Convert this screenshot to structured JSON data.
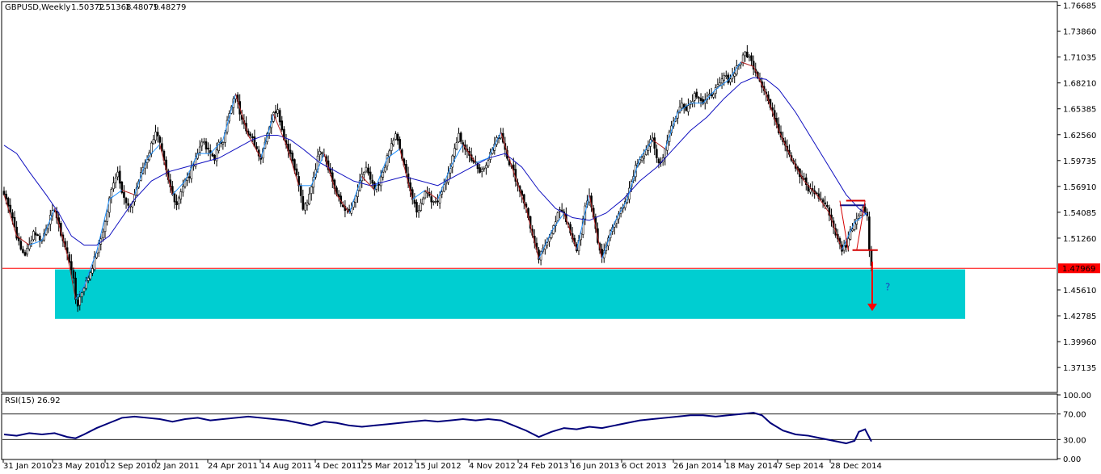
{
  "chart_data": {
    "type": "candlestick",
    "symbol_header": "GBPUSD,Weekly",
    "ohlc_header": {
      "open": "1.50372",
      "high": "1.51368",
      "low": "1.48079",
      "close": "1.48279"
    },
    "price_axis": {
      "ylim": [
        1.345,
        1.77
      ],
      "ticks": [
        "1.76685",
        "1.73860",
        "1.71035",
        "1.68210",
        "1.65385",
        "1.62560",
        "1.59735",
        "1.56910",
        "1.54085",
        "1.51260",
        "1.45610",
        "1.42785",
        "1.39960",
        "1.37135"
      ],
      "current_price": "1.47969"
    },
    "date_labels": [
      "31 Jan 2010",
      "23 May 2010",
      "12 Sep 2010",
      "2 Jan 2011",
      "24 Apr 2011",
      "14 Aug 2011",
      "4 Dec 2011",
      "25 Mar 2012",
      "15 Jul 2012",
      "4 Nov 2012",
      "24 Feb 2013",
      "16 Jun 2013",
      "6 Oct 2013",
      "26 Jan 2014",
      "18 May 2014",
      "7 Sep 2014",
      "28 Dec 2014"
    ],
    "close_path": [
      [
        0,
        1.56
      ],
      [
        2,
        1.55
      ],
      [
        4,
        1.535
      ],
      [
        6,
        1.515
      ],
      [
        8,
        1.5
      ],
      [
        10,
        1.495
      ],
      [
        12,
        1.505
      ],
      [
        14,
        1.52
      ],
      [
        16,
        1.515
      ],
      [
        18,
        1.51
      ],
      [
        20,
        1.525
      ],
      [
        22,
        1.535
      ],
      [
        24,
        1.545
      ],
      [
        26,
        1.525
      ],
      [
        28,
        1.51
      ],
      [
        30,
        1.495
      ],
      [
        32,
        1.48
      ],
      [
        33,
        1.466
      ],
      [
        34,
        1.446
      ],
      [
        35,
        1.44
      ],
      [
        36,
        1.448
      ],
      [
        38,
        1.46
      ],
      [
        40,
        1.47
      ],
      [
        42,
        1.482
      ],
      [
        44,
        1.498
      ],
      [
        46,
        1.512
      ],
      [
        48,
        1.53
      ],
      [
        50,
        1.555
      ],
      [
        52,
        1.575
      ],
      [
        54,
        1.585
      ],
      [
        56,
        1.565
      ],
      [
        58,
        1.55
      ],
      [
        60,
        1.545
      ],
      [
        62,
        1.56
      ],
      [
        64,
        1.575
      ],
      [
        66,
        1.59
      ],
      [
        68,
        1.6
      ],
      [
        70,
        1.615
      ],
      [
        72,
        1.63
      ],
      [
        74,
        1.615
      ],
      [
        76,
        1.595
      ],
      [
        78,
        1.575
      ],
      [
        80,
        1.56
      ],
      [
        82,
        1.55
      ],
      [
        84,
        1.565
      ],
      [
        86,
        1.575
      ],
      [
        88,
        1.58
      ],
      [
        90,
        1.595
      ],
      [
        92,
        1.605
      ],
      [
        94,
        1.62
      ],
      [
        96,
        1.61
      ],
      [
        98,
        1.605
      ],
      [
        100,
        1.6
      ],
      [
        102,
        1.615
      ],
      [
        104,
        1.62
      ],
      [
        106,
        1.64
      ],
      [
        108,
        1.655
      ],
      [
        110,
        1.67
      ],
      [
        112,
        1.65
      ],
      [
        114,
        1.64
      ],
      [
        116,
        1.625
      ],
      [
        118,
        1.62
      ],
      [
        120,
        1.61
      ],
      [
        122,
        1.6
      ],
      [
        124,
        1.62
      ],
      [
        126,
        1.635
      ],
      [
        128,
        1.648
      ],
      [
        130,
        1.655
      ],
      [
        132,
        1.63
      ],
      [
        134,
        1.615
      ],
      [
        136,
        1.605
      ],
      [
        138,
        1.59
      ],
      [
        140,
        1.57
      ],
      [
        142,
        1.545
      ],
      [
        144,
        1.55
      ],
      [
        146,
        1.57
      ],
      [
        148,
        1.59
      ],
      [
        150,
        1.61
      ],
      [
        152,
        1.605
      ],
      [
        154,
        1.59
      ],
      [
        156,
        1.575
      ],
      [
        158,
        1.56
      ],
      [
        160,
        1.55
      ],
      [
        162,
        1.545
      ],
      [
        164,
        1.54
      ],
      [
        166,
        1.55
      ],
      [
        168,
        1.565
      ],
      [
        170,
        1.58
      ],
      [
        172,
        1.59
      ],
      [
        174,
        1.575
      ],
      [
        176,
        1.565
      ],
      [
        178,
        1.57
      ],
      [
        180,
        1.585
      ],
      [
        182,
        1.6
      ],
      [
        184,
        1.615
      ],
      [
        186,
        1.625
      ],
      [
        188,
        1.61
      ],
      [
        190,
        1.59
      ],
      [
        192,
        1.575
      ],
      [
        194,
        1.555
      ],
      [
        196,
        1.54
      ],
      [
        198,
        1.55
      ],
      [
        200,
        1.565
      ],
      [
        202,
        1.56
      ],
      [
        204,
        1.55
      ],
      [
        206,
        1.555
      ],
      [
        208,
        1.565
      ],
      [
        210,
        1.575
      ],
      [
        212,
        1.59
      ],
      [
        214,
        1.61
      ],
      [
        216,
        1.625
      ],
      [
        218,
        1.615
      ],
      [
        220,
        1.605
      ],
      [
        222,
        1.6
      ],
      [
        224,
        1.595
      ],
      [
        226,
        1.585
      ],
      [
        228,
        1.59
      ],
      [
        230,
        1.6
      ],
      [
        232,
        1.61
      ],
      [
        234,
        1.62
      ],
      [
        236,
        1.628
      ],
      [
        238,
        1.61
      ],
      [
        240,
        1.595
      ],
      [
        242,
        1.585
      ],
      [
        244,
        1.57
      ],
      [
        246,
        1.56
      ],
      [
        248,
        1.545
      ],
      [
        250,
        1.525
      ],
      [
        252,
        1.505
      ],
      [
        254,
        1.49
      ],
      [
        256,
        1.5
      ],
      [
        258,
        1.51
      ],
      [
        260,
        1.52
      ],
      [
        262,
        1.53
      ],
      [
        264,
        1.545
      ],
      [
        266,
        1.54
      ],
      [
        268,
        1.525
      ],
      [
        270,
        1.51
      ],
      [
        272,
        1.5
      ],
      [
        274,
        1.52
      ],
      [
        276,
        1.545
      ],
      [
        278,
        1.56
      ],
      [
        280,
        1.535
      ],
      [
        282,
        1.51
      ],
      [
        284,
        1.49
      ],
      [
        286,
        1.505
      ],
      [
        288,
        1.52
      ],
      [
        290,
        1.53
      ],
      [
        292,
        1.54
      ],
      [
        294,
        1.545
      ],
      [
        296,
        1.555
      ],
      [
        298,
        1.575
      ],
      [
        300,
        1.59
      ],
      [
        302,
        1.6
      ],
      [
        304,
        1.605
      ],
      [
        306,
        1.615
      ],
      [
        308,
        1.62
      ],
      [
        310,
        1.6
      ],
      [
        312,
        1.595
      ],
      [
        314,
        1.61
      ],
      [
        316,
        1.63
      ],
      [
        318,
        1.64
      ],
      [
        320,
        1.65
      ],
      [
        322,
        1.66
      ],
      [
        324,
        1.655
      ],
      [
        326,
        1.66
      ],
      [
        328,
        1.67
      ],
      [
        330,
        1.668
      ],
      [
        332,
        1.66
      ],
      [
        334,
        1.665
      ],
      [
        336,
        1.67
      ],
      [
        338,
        1.675
      ],
      [
        340,
        1.68
      ],
      [
        342,
        1.69
      ],
      [
        344,
        1.685
      ],
      [
        346,
        1.69
      ],
      [
        348,
        1.7
      ],
      [
        350,
        1.705
      ],
      [
        352,
        1.715
      ],
      [
        354,
        1.71
      ],
      [
        356,
        1.7
      ],
      [
        358,
        1.69
      ],
      [
        360,
        1.68
      ],
      [
        362,
        1.67
      ],
      [
        364,
        1.655
      ],
      [
        366,
        1.645
      ],
      [
        368,
        1.63
      ],
      [
        370,
        1.62
      ],
      [
        372,
        1.61
      ],
      [
        374,
        1.6
      ],
      [
        376,
        1.59
      ],
      [
        378,
        1.58
      ],
      [
        380,
        1.575
      ],
      [
        382,
        1.565
      ],
      [
        384,
        1.565
      ],
      [
        386,
        1.56
      ],
      [
        388,
        1.555
      ],
      [
        390,
        1.55
      ],
      [
        392,
        1.54
      ],
      [
        394,
        1.525
      ],
      [
        396,
        1.51
      ],
      [
        398,
        1.5
      ],
      [
        400,
        1.505
      ],
      [
        402,
        1.52
      ],
      [
        404,
        1.53
      ],
      [
        406,
        1.54
      ],
      [
        408,
        1.545
      ],
      [
        410,
        1.54
      ],
      [
        411,
        1.5
      ],
      [
        412,
        1.483
      ]
    ],
    "ma_path": [
      [
        0,
        1.614
      ],
      [
        6,
        1.605
      ],
      [
        12,
        1.585
      ],
      [
        20,
        1.56
      ],
      [
        26,
        1.54
      ],
      [
        32,
        1.515
      ],
      [
        38,
        1.505
      ],
      [
        44,
        1.505
      ],
      [
        50,
        1.515
      ],
      [
        56,
        1.535
      ],
      [
        62,
        1.555
      ],
      [
        70,
        1.575
      ],
      [
        78,
        1.585
      ],
      [
        86,
        1.59
      ],
      [
        94,
        1.595
      ],
      [
        102,
        1.6
      ],
      [
        110,
        1.61
      ],
      [
        118,
        1.62
      ],
      [
        124,
        1.625
      ],
      [
        130,
        1.625
      ],
      [
        136,
        1.62
      ],
      [
        142,
        1.61
      ],
      [
        150,
        1.595
      ],
      [
        158,
        1.585
      ],
      [
        166,
        1.575
      ],
      [
        174,
        1.57
      ],
      [
        182,
        1.575
      ],
      [
        190,
        1.58
      ],
      [
        198,
        1.575
      ],
      [
        206,
        1.57
      ],
      [
        214,
        1.58
      ],
      [
        222,
        1.59
      ],
      [
        230,
        1.6
      ],
      [
        238,
        1.605
      ],
      [
        246,
        1.59
      ],
      [
        254,
        1.565
      ],
      [
        262,
        1.545
      ],
      [
        270,
        1.535
      ],
      [
        278,
        1.532
      ],
      [
        286,
        1.54
      ],
      [
        294,
        1.555
      ],
      [
        302,
        1.575
      ],
      [
        310,
        1.59
      ],
      [
        318,
        1.61
      ],
      [
        326,
        1.63
      ],
      [
        334,
        1.645
      ],
      [
        342,
        1.665
      ],
      [
        350,
        1.682
      ],
      [
        356,
        1.688
      ],
      [
        362,
        1.686
      ],
      [
        368,
        1.675
      ],
      [
        376,
        1.65
      ],
      [
        384,
        1.62
      ],
      [
        392,
        1.59
      ],
      [
        400,
        1.56
      ],
      [
        406,
        1.545
      ],
      [
        410,
        1.538
      ]
    ],
    "support_zone": {
      "from": 1.4245,
      "to": 1.4785
    },
    "current_line": 1.47969,
    "annotation_mark": "?",
    "rsi": {
      "label": "RSI(15) 26.92",
      "ylim": [
        0,
        100
      ],
      "ticks": [
        "100.00",
        "70.00",
        "30.00",
        "0.00"
      ],
      "levels": [
        70,
        30
      ],
      "path": [
        [
          0,
          38
        ],
        [
          6,
          36
        ],
        [
          12,
          40
        ],
        [
          18,
          38
        ],
        [
          24,
          40
        ],
        [
          30,
          34
        ],
        [
          34,
          32
        ],
        [
          38,
          38
        ],
        [
          44,
          48
        ],
        [
          50,
          56
        ],
        [
          56,
          64
        ],
        [
          62,
          66
        ],
        [
          68,
          64
        ],
        [
          74,
          62
        ],
        [
          80,
          58
        ],
        [
          86,
          62
        ],
        [
          92,
          64
        ],
        [
          98,
          60
        ],
        [
          104,
          62
        ],
        [
          110,
          64
        ],
        [
          116,
          66
        ],
        [
          122,
          64
        ],
        [
          128,
          62
        ],
        [
          134,
          60
        ],
        [
          140,
          56
        ],
        [
          146,
          52
        ],
        [
          152,
          58
        ],
        [
          158,
          56
        ],
        [
          164,
          52
        ],
        [
          170,
          50
        ],
        [
          176,
          52
        ],
        [
          182,
          54
        ],
        [
          188,
          56
        ],
        [
          194,
          58
        ],
        [
          200,
          60
        ],
        [
          206,
          58
        ],
        [
          212,
          60
        ],
        [
          218,
          62
        ],
        [
          224,
          60
        ],
        [
          230,
          62
        ],
        [
          236,
          60
        ],
        [
          242,
          52
        ],
        [
          248,
          44
        ],
        [
          254,
          34
        ],
        [
          260,
          42
        ],
        [
          266,
          48
        ],
        [
          272,
          46
        ],
        [
          278,
          50
        ],
        [
          284,
          48
        ],
        [
          290,
          52
        ],
        [
          296,
          56
        ],
        [
          302,
          60
        ],
        [
          308,
          62
        ],
        [
          314,
          64
        ],
        [
          320,
          66
        ],
        [
          326,
          68
        ],
        [
          332,
          68
        ],
        [
          338,
          66
        ],
        [
          344,
          68
        ],
        [
          350,
          70
        ],
        [
          356,
          72
        ],
        [
          360,
          68
        ],
        [
          364,
          56
        ],
        [
          370,
          44
        ],
        [
          376,
          38
        ],
        [
          382,
          36
        ],
        [
          388,
          32
        ],
        [
          394,
          28
        ],
        [
          400,
          24
        ],
        [
          404,
          28
        ],
        [
          406,
          42
        ],
        [
          409,
          46
        ],
        [
          412,
          27
        ]
      ]
    }
  },
  "colors": {
    "bull_candle": "#1e90ff",
    "bear_candle": "#b22222",
    "ma_line": "#1010c0",
    "swing_line": "#d40000",
    "support_zone": "#00ced1",
    "current_price_line": "#ff0000",
    "rsi_line": "#00007a"
  }
}
